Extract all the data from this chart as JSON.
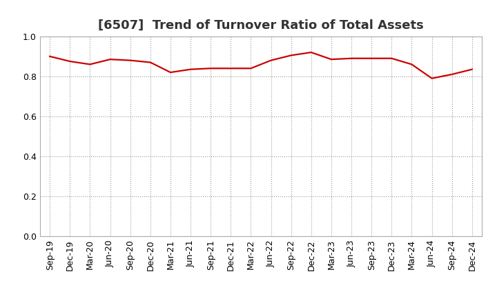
{
  "title": "[6507]  Trend of Turnover Ratio of Total Assets",
  "labels": [
    "Sep-19",
    "Dec-19",
    "Mar-20",
    "Jun-20",
    "Sep-20",
    "Dec-20",
    "Mar-21",
    "Jun-21",
    "Sep-21",
    "Dec-21",
    "Mar-22",
    "Jun-22",
    "Sep-22",
    "Dec-22",
    "Mar-23",
    "Jun-23",
    "Sep-23",
    "Dec-23",
    "Mar-24",
    "Jun-24",
    "Sep-24",
    "Dec-24"
  ],
  "values": [
    0.9,
    0.875,
    0.86,
    0.885,
    0.88,
    0.87,
    0.82,
    0.835,
    0.84,
    0.84,
    0.84,
    0.88,
    0.905,
    0.92,
    0.885,
    0.89,
    0.89,
    0.89,
    0.86,
    0.79,
    0.81,
    0.835
  ],
  "line_color": "#cc0000",
  "line_width": 1.6,
  "ylim": [
    0.0,
    1.0
  ],
  "yticks": [
    0.0,
    0.2,
    0.4,
    0.6,
    0.8,
    1.0
  ],
  "background_color": "#ffffff",
  "grid_color": "#999999",
  "title_fontsize": 13,
  "tick_fontsize": 9,
  "title_color": "#333333"
}
